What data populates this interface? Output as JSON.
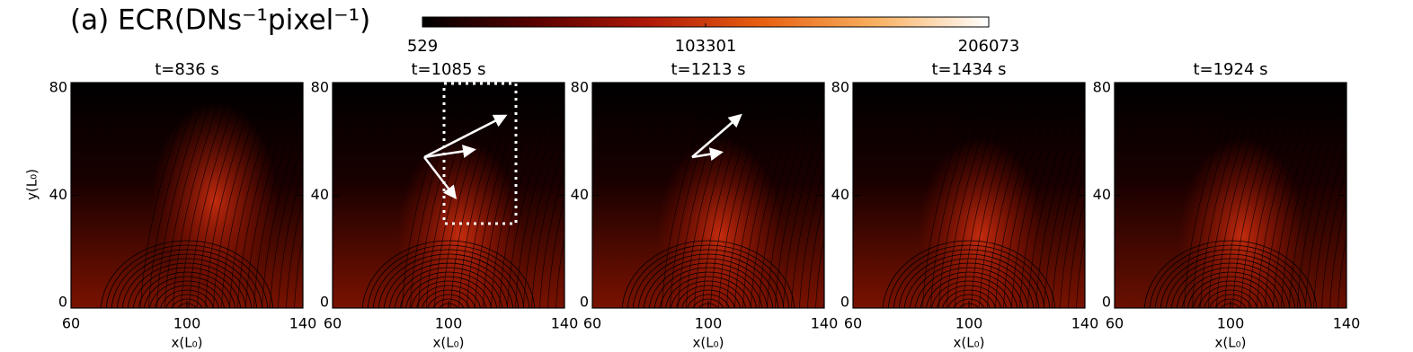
{
  "chart_data": [
    {
      "type": "colorbar",
      "title": "(a) ECR(DNs⁻¹pixel⁻¹)",
      "clim": [
        529,
        206073
      ],
      "cticks": [
        529,
        103301,
        206073
      ],
      "colormap": [
        "#000000",
        "#5a0000",
        "#b01808",
        "#e86010",
        "#f8b060",
        "#ffffff"
      ]
    },
    {
      "type": "image",
      "title": "t=836 s",
      "xlabel": "x(L₀)",
      "ylabel": "y(L₀)",
      "xlim": [
        60,
        140
      ],
      "xticks": [
        60,
        100,
        140
      ],
      "ylim": [
        0,
        80
      ],
      "yticks": [
        0,
        40,
        80
      ]
    },
    {
      "type": "image",
      "title": "t=1085 s",
      "xlabel": "x(L₀)",
      "xlim": [
        60,
        140
      ],
      "xticks": [
        60,
        100,
        140
      ],
      "ylim": [
        0,
        80
      ],
      "yticks": [
        0,
        40,
        80
      ]
    },
    {
      "type": "image",
      "title": "t=1213 s",
      "xlabel": "x(L₀)",
      "xlim": [
        60,
        140
      ],
      "xticks": [
        60,
        100,
        140
      ],
      "ylim": [
        0,
        80
      ],
      "yticks": [
        0,
        40,
        80
      ]
    },
    {
      "type": "image",
      "title": "t=1434 s",
      "xlabel": "x(L₀)",
      "xlim": [
        60,
        140
      ],
      "xticks": [
        60,
        100,
        140
      ],
      "ylim": [
        0,
        80
      ],
      "yticks": [
        0,
        40,
        80
      ]
    },
    {
      "type": "image",
      "title": "t=1924 s",
      "xlabel": "x(L₀)",
      "xlim": [
        60,
        140
      ],
      "xticks": [
        60,
        100,
        140
      ],
      "ylim": [
        0,
        80
      ],
      "yticks": [
        0,
        40,
        80
      ]
    }
  ]
}
